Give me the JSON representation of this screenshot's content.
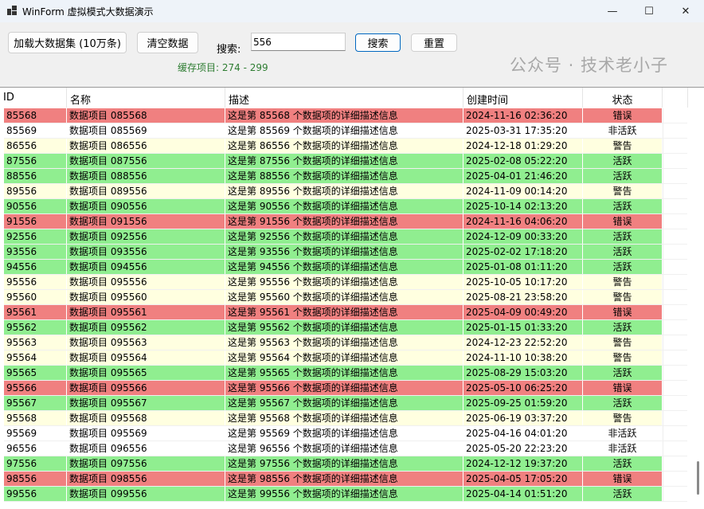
{
  "window": {
    "title": "WinForm 虚拟模式大数据演示",
    "minimize": "—",
    "maximize": "☐",
    "close": "✕"
  },
  "toolbar": {
    "load_label": "加载大数据集 (10万条)",
    "clear_label": "清空数据",
    "search_label": "搜索:",
    "search_value": "556",
    "search_button": "搜索",
    "reset_button": "重置",
    "cache_text": "缓存项目: 274 - 299"
  },
  "colors": {
    "error": "#F08080",
    "active": "#90EE90",
    "warning": "#FFFFE0",
    "inactive": "#FFFFFF",
    "cache_text": "#2E7D32"
  },
  "columns": [
    "ID",
    "名称",
    "描述",
    "创建时间",
    "状态"
  ],
  "rows": [
    [
      "85568",
      "数据项目 085568",
      "这是第 85568 个数据项的详细描述信息",
      "2024-11-16 02:36:20",
      "错误"
    ],
    [
      "85569",
      "数据项目 085569",
      "这是第 85569 个数据项的详细描述信息",
      "2025-03-31 17:35:20",
      "非活跃"
    ],
    [
      "86556",
      "数据项目 086556",
      "这是第 86556 个数据项的详细描述信息",
      "2024-12-18 01:29:20",
      "警告"
    ],
    [
      "87556",
      "数据项目 087556",
      "这是第 87556 个数据项的详细描述信息",
      "2025-02-08 05:22:20",
      "活跃"
    ],
    [
      "88556",
      "数据项目 088556",
      "这是第 88556 个数据项的详细描述信息",
      "2025-04-01 21:46:20",
      "活跃"
    ],
    [
      "89556",
      "数据项目 089556",
      "这是第 89556 个数据项的详细描述信息",
      "2024-11-09 00:14:20",
      "警告"
    ],
    [
      "90556",
      "数据项目 090556",
      "这是第 90556 个数据项的详细描述信息",
      "2025-10-14 02:13:20",
      "活跃"
    ],
    [
      "91556",
      "数据项目 091556",
      "这是第 91556 个数据项的详细描述信息",
      "2024-11-16 04:06:20",
      "错误"
    ],
    [
      "92556",
      "数据项目 092556",
      "这是第 92556 个数据项的详细描述信息",
      "2024-12-09 00:33:20",
      "活跃"
    ],
    [
      "93556",
      "数据项目 093556",
      "这是第 93556 个数据项的详细描述信息",
      "2025-02-02 17:18:20",
      "活跃"
    ],
    [
      "94556",
      "数据项目 094556",
      "这是第 94556 个数据项的详细描述信息",
      "2025-01-08 01:11:20",
      "活跃"
    ],
    [
      "95556",
      "数据项目 095556",
      "这是第 95556 个数据项的详细描述信息",
      "2025-10-05 10:17:20",
      "警告"
    ],
    [
      "95560",
      "数据项目 095560",
      "这是第 95560 个数据项的详细描述信息",
      "2025-08-21 23:58:20",
      "警告"
    ],
    [
      "95561",
      "数据项目 095561",
      "这是第 95561 个数据项的详细描述信息",
      "2025-04-09 00:49:20",
      "错误"
    ],
    [
      "95562",
      "数据项目 095562",
      "这是第 95562 个数据项的详细描述信息",
      "2025-01-15 01:33:20",
      "活跃"
    ],
    [
      "95563",
      "数据项目 095563",
      "这是第 95563 个数据项的详细描述信息",
      "2024-12-23 22:52:20",
      "警告"
    ],
    [
      "95564",
      "数据项目 095564",
      "这是第 95564 个数据项的详细描述信息",
      "2024-11-10 10:38:20",
      "警告"
    ],
    [
      "95565",
      "数据项目 095565",
      "这是第 95565 个数据项的详细描述信息",
      "2025-08-29 15:03:20",
      "活跃"
    ],
    [
      "95566",
      "数据项目 095566",
      "这是第 95566 个数据项的详细描述信息",
      "2025-05-10 06:25:20",
      "错误"
    ],
    [
      "95567",
      "数据项目 095567",
      "这是第 95567 个数据项的详细描述信息",
      "2025-09-25 01:59:20",
      "活跃"
    ],
    [
      "95568",
      "数据项目 095568",
      "这是第 95568 个数据项的详细描述信息",
      "2025-06-19 03:37:20",
      "警告"
    ],
    [
      "95569",
      "数据项目 095569",
      "这是第 95569 个数据项的详细描述信息",
      "2025-04-16 04:01:20",
      "非活跃"
    ],
    [
      "96556",
      "数据项目 096556",
      "这是第 96556 个数据项的详细描述信息",
      "2025-05-20 22:23:20",
      "非活跃"
    ],
    [
      "97556",
      "数据项目 097556",
      "这是第 97556 个数据项的详细描述信息",
      "2024-12-12 19:37:20",
      "活跃"
    ],
    [
      "98556",
      "数据项目 098556",
      "这是第 98556 个数据项的详细描述信息",
      "2025-04-05 17:05:20",
      "错误"
    ],
    [
      "99556",
      "数据项目 099556",
      "这是第 99556 个数据项的详细描述信息",
      "2025-04-14 01:51:20",
      "活跃"
    ]
  ],
  "watermark": "公众号 · 技术老小子"
}
